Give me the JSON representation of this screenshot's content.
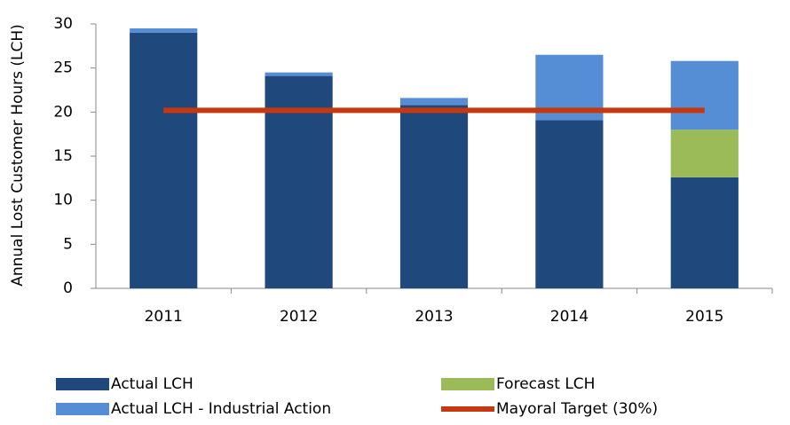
{
  "chart_data": {
    "type": "bar",
    "y_label": "Annual Lost Customer Hours (LCH)",
    "categories": [
      "2011",
      "2012",
      "2013",
      "2014",
      "2015"
    ],
    "series": [
      {
        "name": "Actual LCH",
        "color": "#1f497d",
        "values": [
          29.0,
          24.1,
          20.8,
          19.1,
          12.6
        ]
      },
      {
        "name": "Forecast LCH",
        "color": "#9bbb59",
        "values": [
          0,
          0,
          0,
          0,
          5.4
        ]
      },
      {
        "name": "Actual LCH - Industrial Action",
        "color": "#558ed5",
        "values": [
          0.5,
          0.4,
          0.8,
          7.4,
          7.8
        ]
      },
      {
        "name": "Mayoral Target (30%)",
        "color": "#c8380e",
        "type": "line",
        "values": [
          20.2,
          20.2,
          20.2,
          20.2,
          20.2
        ]
      }
    ],
    "ylim": [
      0,
      30
    ],
    "yticks": [
      0,
      5,
      10,
      15,
      20,
      25,
      30
    ],
    "stacked": true
  }
}
